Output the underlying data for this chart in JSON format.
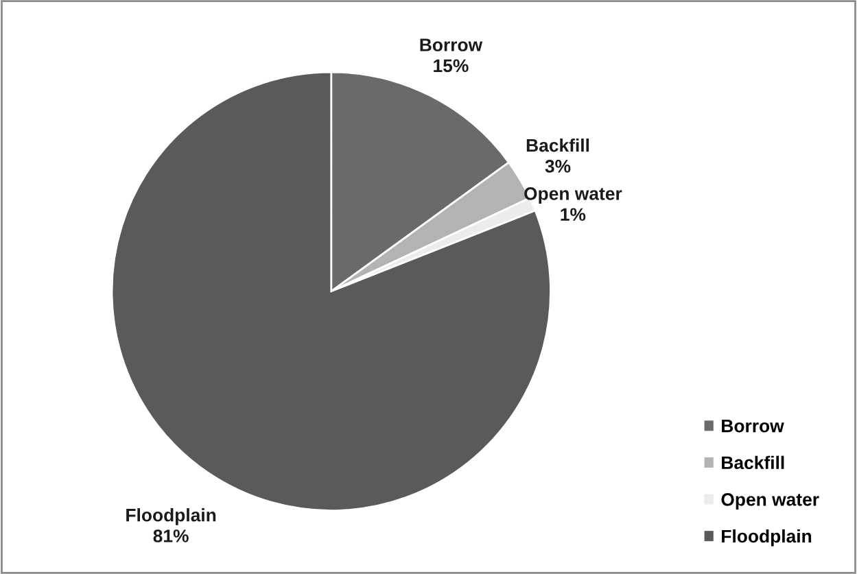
{
  "chart_data": {
    "type": "pie",
    "categories": [
      "Borrow",
      "Backfill",
      "Open water",
      "Floodplain"
    ],
    "values": [
      15,
      3,
      1,
      81
    ],
    "colors": [
      "#6a6a6a",
      "#b3b3b3",
      "#ececec",
      "#5a5a5a"
    ],
    "value_labels": [
      "15%",
      "3%",
      "1%",
      "81%"
    ],
    "legend": "bottom right"
  }
}
